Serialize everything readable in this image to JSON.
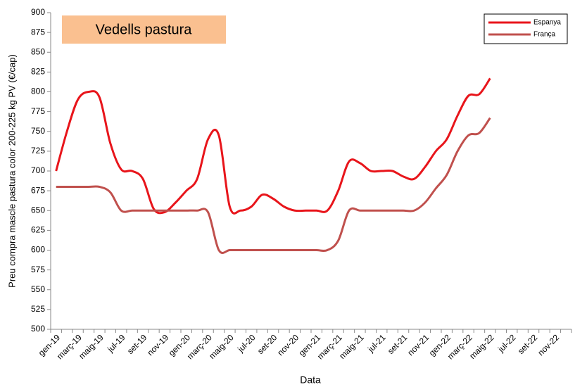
{
  "chart_data": {
    "type": "line",
    "annotation": "Vedells pastura",
    "x_label": "Data",
    "y_label": "Preu compra mascle pastura color 200-225 kg PV (€/cap)",
    "categories": [
      "gen-19",
      null,
      "març-19",
      null,
      "maig-19",
      null,
      "jul-19",
      null,
      "set-19",
      null,
      "nov-19",
      null,
      "gen-20",
      null,
      "març-20",
      null,
      "maig-20",
      null,
      "jul-20",
      null,
      "set-20",
      null,
      "nov-20",
      null,
      "gen-21",
      null,
      "març-21",
      null,
      "maig-21",
      null,
      "jul-21",
      null,
      "set-21",
      null,
      "nov-21",
      null,
      "gen-22",
      null,
      "març-22",
      null,
      "maig-22",
      null,
      "jul-22",
      null,
      "set-22",
      null,
      "nov-22",
      null
    ],
    "series": [
      {
        "name": "Espanya",
        "color": "#e8151b",
        "values": [
          700,
          750,
          790,
          800,
          793,
          735,
          702,
          700,
          690,
          652,
          648,
          660,
          675,
          690,
          740,
          745,
          655,
          650,
          655,
          670,
          665,
          655,
          650,
          650,
          650,
          650,
          675,
          712,
          710,
          700,
          700,
          700,
          693,
          690,
          705,
          725,
          740,
          770,
          795,
          797,
          817,
          null,
          null,
          null,
          null,
          null,
          null,
          null
        ]
      },
      {
        "name": "França",
        "color": "#c0504d",
        "values": [
          680,
          680,
          680,
          680,
          680,
          673,
          650,
          650,
          650,
          650,
          650,
          650,
          650,
          650,
          648,
          600,
          600,
          600,
          600,
          600,
          600,
          600,
          600,
          600,
          600,
          600,
          612,
          650,
          650,
          650,
          650,
          650,
          650,
          650,
          660,
          678,
          695,
          725,
          745,
          748,
          767,
          null,
          null,
          null,
          null,
          null,
          null,
          null
        ]
      }
    ],
    "ylim": [
      500,
      900
    ],
    "yticks": [
      500,
      525,
      550,
      575,
      600,
      625,
      650,
      675,
      700,
      725,
      750,
      775,
      800,
      825,
      850,
      875,
      900
    ],
    "legend": "top-right"
  }
}
